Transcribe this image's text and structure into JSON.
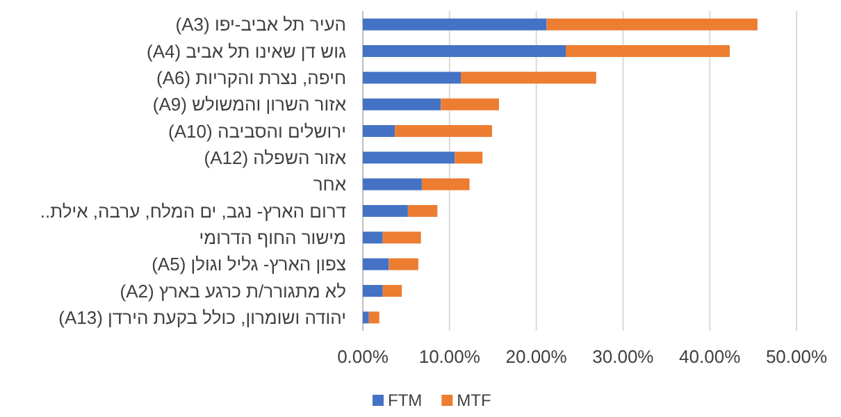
{
  "chart_data": {
    "type": "bar",
    "orientation": "horizontal",
    "stacked": true,
    "categories": [
      "העיר תל אביב-יפו (A3)",
      "גוש דן שאינו תל אביב (A4)",
      "חיפה, נצרת והקריות (A6)",
      "אזור השרון והמשולש (A9)",
      "ירושלים והסביבה (A10)",
      "אזור השפלה (A12)",
      "אחר",
      "דרום הארץ- נגב, ים המלח, ערבה, אילת..",
      "מישור החוף הדרומי",
      "צפון הארץ- גליל וגולן (A5)",
      "לא מתגורר/ת כרגע בארץ (A2)",
      "יהודה ושומרון, כולל בקעת הירדן (A13)"
    ],
    "series": [
      {
        "name": "FTM",
        "color": "#4472c4",
        "values": [
          21.2,
          23.4,
          11.3,
          9.0,
          3.7,
          10.6,
          6.8,
          5.2,
          2.3,
          3.0,
          2.3,
          0.7
        ]
      },
      {
        "name": "MTF",
        "color": "#ed7d31",
        "values": [
          24.3,
          18.9,
          15.6,
          6.7,
          11.2,
          3.2,
          5.5,
          3.4,
          4.4,
          3.4,
          2.2,
          1.2
        ]
      }
    ],
    "xlim": [
      0,
      50
    ],
    "xticks": [
      {
        "value": 0,
        "label": "0.00%"
      },
      {
        "value": 10,
        "label": "10.00%"
      },
      {
        "value": 20,
        "label": "20.00%"
      },
      {
        "value": 30,
        "label": "30.00%"
      },
      {
        "value": 40,
        "label": "40.00%"
      },
      {
        "value": 50,
        "label": "50.00%"
      }
    ],
    "grid": "x",
    "legend": "bottom"
  }
}
